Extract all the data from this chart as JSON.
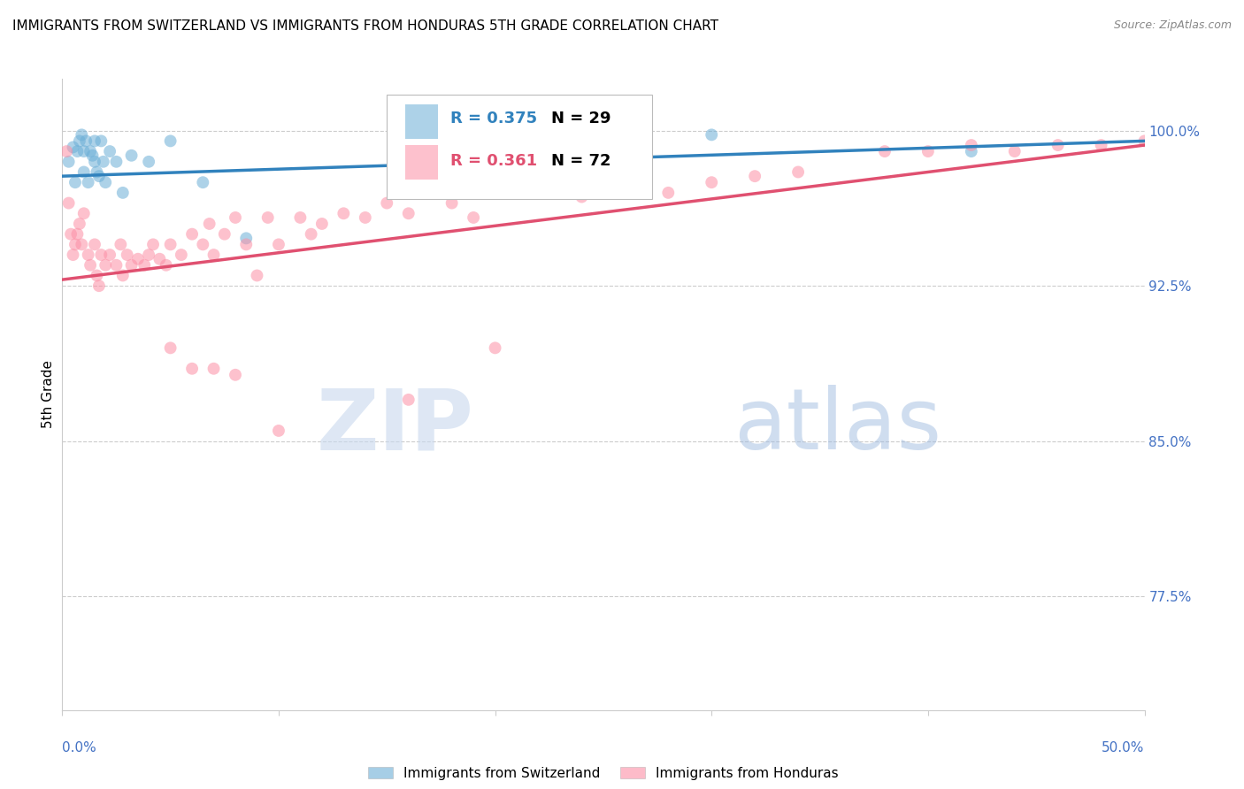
{
  "title": "IMMIGRANTS FROM SWITZERLAND VS IMMIGRANTS FROM HONDURAS 5TH GRADE CORRELATION CHART",
  "source": "Source: ZipAtlas.com",
  "ylabel": "5th Grade",
  "y_ticks": [
    77.5,
    85.0,
    92.5,
    100.0
  ],
  "y_tick_labels": [
    "77.5%",
    "85.0%",
    "92.5%",
    "100.0%"
  ],
  "x_range": [
    0.0,
    0.5
  ],
  "y_range": [
    72.0,
    102.5
  ],
  "blue_color": "#6BAED6",
  "pink_color": "#FC8FA5",
  "blue_line_color": "#3182BD",
  "pink_line_color": "#E05070",
  "blue_scatter_x": [
    0.003,
    0.005,
    0.006,
    0.007,
    0.008,
    0.009,
    0.01,
    0.01,
    0.011,
    0.012,
    0.013,
    0.014,
    0.015,
    0.015,
    0.016,
    0.017,
    0.018,
    0.019,
    0.02,
    0.022,
    0.025,
    0.028,
    0.032,
    0.04,
    0.05,
    0.065,
    0.085,
    0.3,
    0.42
  ],
  "blue_scatter_y": [
    98.5,
    99.2,
    97.5,
    99.0,
    99.5,
    99.8,
    99.0,
    98.0,
    99.5,
    97.5,
    99.0,
    98.8,
    98.5,
    99.5,
    98.0,
    97.8,
    99.5,
    98.5,
    97.5,
    99.0,
    98.5,
    97.0,
    98.8,
    98.5,
    99.5,
    97.5,
    94.8,
    99.8,
    99.0
  ],
  "pink_scatter_x": [
    0.002,
    0.003,
    0.004,
    0.005,
    0.006,
    0.007,
    0.008,
    0.009,
    0.01,
    0.012,
    0.013,
    0.015,
    0.016,
    0.017,
    0.018,
    0.02,
    0.022,
    0.025,
    0.027,
    0.028,
    0.03,
    0.032,
    0.035,
    0.038,
    0.04,
    0.042,
    0.045,
    0.048,
    0.05,
    0.055,
    0.06,
    0.065,
    0.068,
    0.07,
    0.075,
    0.08,
    0.085,
    0.09,
    0.095,
    0.1,
    0.11,
    0.115,
    0.12,
    0.13,
    0.14,
    0.15,
    0.16,
    0.17,
    0.18,
    0.19,
    0.2,
    0.22,
    0.24,
    0.26,
    0.28,
    0.3,
    0.32,
    0.34,
    0.38,
    0.4,
    0.42,
    0.44,
    0.46,
    0.48,
    0.5,
    0.16,
    0.1,
    0.05,
    0.08,
    0.2,
    0.07,
    0.06
  ],
  "pink_scatter_y": [
    99.0,
    96.5,
    95.0,
    94.0,
    94.5,
    95.0,
    95.5,
    94.5,
    96.0,
    94.0,
    93.5,
    94.5,
    93.0,
    92.5,
    94.0,
    93.5,
    94.0,
    93.5,
    94.5,
    93.0,
    94.0,
    93.5,
    93.8,
    93.5,
    94.0,
    94.5,
    93.8,
    93.5,
    94.5,
    94.0,
    95.0,
    94.5,
    95.5,
    94.0,
    95.0,
    95.8,
    94.5,
    93.0,
    95.8,
    94.5,
    95.8,
    95.0,
    95.5,
    96.0,
    95.8,
    96.5,
    96.0,
    97.0,
    96.5,
    95.8,
    97.5,
    97.0,
    96.8,
    97.5,
    97.0,
    97.5,
    97.8,
    98.0,
    99.0,
    99.0,
    99.3,
    99.0,
    99.3,
    99.3,
    99.5,
    87.0,
    85.5,
    89.5,
    88.2,
    89.5,
    88.5,
    88.5
  ],
  "blue_line_x": [
    0.0,
    0.5
  ],
  "blue_line_y": [
    97.8,
    99.5
  ],
  "pink_line_x": [
    0.0,
    0.5
  ],
  "pink_line_y": [
    92.8,
    99.3
  ],
  "marker_size": 100,
  "bg_color": "#FFFFFF",
  "grid_color": "#CCCCCC",
  "title_fontsize": 11,
  "tick_label_color": "#4472C4",
  "source_color": "#888888"
}
